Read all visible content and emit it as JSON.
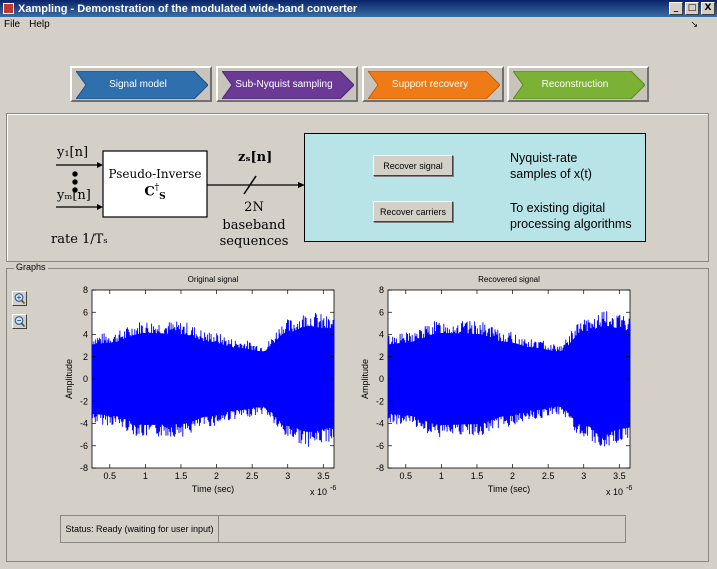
{
  "window": {
    "title": "Xampling - Demonstration of the modulated wide-band converter",
    "min": "_",
    "max": "□",
    "close": "X"
  },
  "menu": {
    "items": [
      "File",
      "Help"
    ],
    "dock_glyph": "↘"
  },
  "steps": [
    {
      "label": "Signal model",
      "color": "#2f6fae",
      "dark": "#1c4f86"
    },
    {
      "label": "Sub-Nyquist sampling",
      "color": "#6b3a96",
      "dark": "#4d2672"
    },
    {
      "label": "Support recovery",
      "color": "#ef7b16",
      "dark": "#c65d05"
    },
    {
      "label": "Reconstruction",
      "color": "#7bb135",
      "dark": "#5a8b1e"
    }
  ],
  "diagram": {
    "input_top": "y₁[n]",
    "input_bottom": "yₘ[n]",
    "rate": "rate 1/Tₛ",
    "block_title": "Pseudo-Inverse",
    "block_math": "C",
    "block_sup": "†",
    "block_sub": "S",
    "output_label": "zₛ[n]",
    "output_n": "2N",
    "output_desc1": "baseband",
    "output_desc2": "sequences"
  },
  "actions": {
    "recover_signal": "Recover signal",
    "recover_carriers": "Recover carriers",
    "result1_line1": "Nyquist-rate",
    "result1_line2": "samples of x(t)",
    "result2_line1": "To existing digital",
    "result2_line2": "processing algorithms"
  },
  "graphs": {
    "legend": "Graphs",
    "zoom_in": "zoom-in",
    "zoom_out": "zoom-out"
  },
  "chart_data": [
    {
      "type": "line",
      "title": "Original signal",
      "xlabel": "Time (sec)",
      "ylabel": "Amplitude",
      "x_exponent": "x 10",
      "x_exponent_power": "-6",
      "xlim": [
        0.25,
        3.65
      ],
      "ylim": [
        -8,
        8
      ],
      "xticks": [
        0.5,
        1,
        1.5,
        2,
        2.5,
        3,
        3.5
      ],
      "yticks": [
        -8,
        -6,
        -4,
        -2,
        0,
        2,
        4,
        6,
        8
      ],
      "xtick_labels": [
        "0.5",
        "1",
        "1.5",
        "2",
        "2.5",
        "3",
        "3.5"
      ],
      "ytick_labels": [
        "-8",
        "-6",
        "-4",
        "-2",
        "0",
        "2",
        "4",
        "6",
        "8"
      ],
      "color": "#0000ff",
      "envelope": {
        "x": [
          0.25,
          0.5,
          1.0,
          1.5,
          1.9,
          2.3,
          2.65,
          3.0,
          3.3,
          3.65
        ],
        "y": [
          4.0,
          4.2,
          5.3,
          5.2,
          4.3,
          3.6,
          3.2,
          5.4,
          6.1,
          5.6
        ]
      }
    },
    {
      "type": "line",
      "title": "Recovered signal",
      "xlabel": "Time (sec)",
      "ylabel": "Amplitude",
      "x_exponent": "x 10",
      "x_exponent_power": "-6",
      "xlim": [
        0.25,
        3.65
      ],
      "ylim": [
        -8,
        8
      ],
      "xticks": [
        0.5,
        1,
        1.5,
        2,
        2.5,
        3,
        3.5
      ],
      "yticks": [
        -8,
        -6,
        -4,
        -2,
        0,
        2,
        4,
        6,
        8
      ],
      "xtick_labels": [
        "0.5",
        "1",
        "1.5",
        "2",
        "2.5",
        "3",
        "3.5"
      ],
      "ytick_labels": [
        "-8",
        "-6",
        "-4",
        "-2",
        "0",
        "2",
        "4",
        "6",
        "8"
      ],
      "color": "#0000ff",
      "envelope": {
        "x": [
          0.25,
          0.5,
          1.0,
          1.5,
          1.9,
          2.3,
          2.65,
          3.0,
          3.3,
          3.65
        ],
        "y": [
          4.0,
          4.2,
          5.3,
          5.2,
          4.3,
          3.6,
          3.2,
          5.4,
          6.1,
          5.6
        ]
      }
    }
  ],
  "status": {
    "text": "Status: Ready (waiting for user input)"
  }
}
